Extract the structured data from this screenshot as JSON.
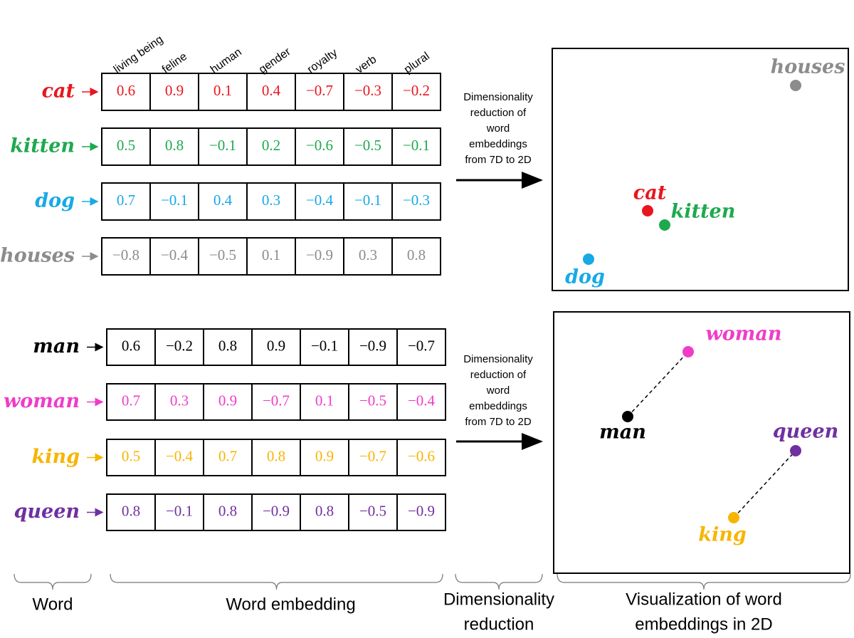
{
  "dimensions": [
    "living being",
    "feline",
    "human",
    "gender",
    "royalty",
    "verb",
    "plural"
  ],
  "groups": [
    {
      "words": [
        {
          "word": "cat",
          "color": "#e8161e",
          "values": [
            "0.6",
            "0.9",
            "0.1",
            "0.4",
            "−0.7",
            "−0.3",
            "−0.2"
          ]
        },
        {
          "word": "kitten",
          "color": "#1ea94f",
          "values": [
            "0.5",
            "0.8",
            "−0.1",
            "0.2",
            "−0.6",
            "−0.5",
            "−0.1"
          ]
        },
        {
          "word": "dog",
          "color": "#17a9e6",
          "values": [
            "0.7",
            "−0.1",
            "0.4",
            "0.3",
            "−0.4",
            "−0.1",
            "−0.3"
          ]
        },
        {
          "word": "houses",
          "color": "#8c8c8c",
          "values": [
            "−0.8",
            "−0.4",
            "−0.5",
            "0.1",
            "−0.9",
            "0.3",
            "0.8"
          ]
        }
      ],
      "reduction_label": [
        "Dimensionality",
        "reduction of",
        "word",
        "embeddings",
        "from 7D to 2D"
      ]
    },
    {
      "words": [
        {
          "word": "man",
          "color": "#000000",
          "values": [
            "0.6",
            "−0.2",
            "0.8",
            "0.9",
            "−0.1",
            "−0.9",
            "−0.7"
          ]
        },
        {
          "word": "woman",
          "color": "#f03cc8",
          "values": [
            "0.7",
            "0.3",
            "0.9",
            "−0.7",
            "0.1",
            "−0.5",
            "−0.4"
          ]
        },
        {
          "word": "king",
          "color": "#f7b500",
          "values": [
            "0.5",
            "−0.4",
            "0.7",
            "0.8",
            "0.9",
            "−0.7",
            "−0.6"
          ]
        },
        {
          "word": "queen",
          "color": "#7030a0",
          "values": [
            "0.8",
            "−0.1",
            "0.8",
            "−0.9",
            "0.8",
            "−0.5",
            "−0.9"
          ]
        }
      ],
      "reduction_label": [
        "Dimensionality",
        "reduction of",
        "word",
        "embeddings",
        "from 7D to 2D"
      ]
    }
  ],
  "footer": [
    [
      "Word"
    ],
    [
      "Word embedding"
    ],
    [
      "Dimensionality",
      "reduction"
    ],
    [
      "Visualization of word",
      "embeddings  in 2D"
    ]
  ]
}
